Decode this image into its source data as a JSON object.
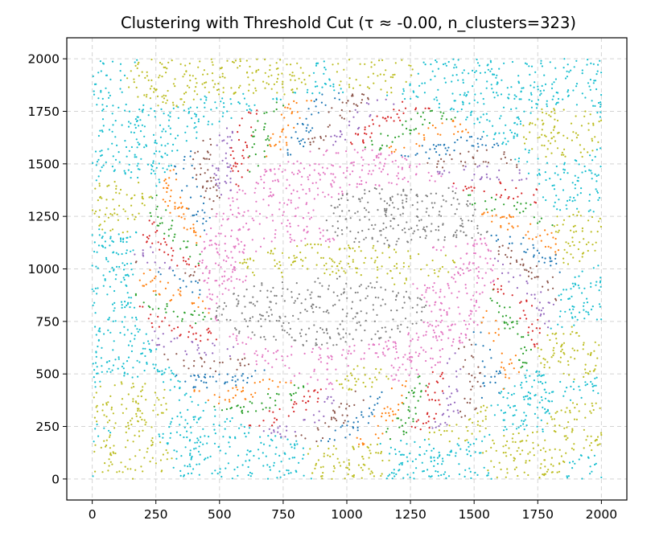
{
  "chart_data": {
    "type": "scatter",
    "title": "Clustering with Threshold Cut (τ ≈ -0.00, n_clusters=323)",
    "xlabel": "",
    "ylabel": "",
    "xlim": [
      -100,
      2100
    ],
    "ylim": [
      -100,
      2100
    ],
    "xticks": [
      0,
      250,
      500,
      750,
      1000,
      1250,
      1500,
      1750,
      2000
    ],
    "yticks": [
      0,
      250,
      500,
      750,
      1000,
      1250,
      1500,
      1750,
      2000
    ],
    "xtick_labels": [
      "0",
      "250",
      "500",
      "750",
      "1000",
      "1250",
      "1500",
      "1750",
      "2000"
    ],
    "ytick_labels": [
      "0",
      "250",
      "500",
      "750",
      "1000",
      "1250",
      "1500",
      "1750",
      "2000"
    ],
    "grid": true,
    "legend": "none",
    "n_clusters": 323,
    "palette": [
      "#1f77b4",
      "#ff7f0e",
      "#2ca02c",
      "#d62728",
      "#9467bd",
      "#8c564b",
      "#e377c2",
      "#7f7f7f",
      "#bcbd22",
      "#17becf"
    ],
    "point_extent": {
      "x": [
        0,
        2000
      ],
      "y": [
        0,
        2000
      ]
    },
    "regions": [
      {
        "name": "outer-corners",
        "color": "#17becf",
        "center": [
          1000,
          1000
        ],
        "shape": "outside ellipse",
        "radius": [
          1000,
          1000
        ]
      },
      {
        "name": "outer-yellow-patches",
        "color": "#bcbd22",
        "samples": [
          [
            150,
            100
          ],
          [
            300,
            1900
          ],
          [
            1100,
            1950
          ],
          [
            1850,
            1650
          ],
          [
            1900,
            600
          ],
          [
            1700,
            100
          ]
        ]
      },
      {
        "name": "inner-gray-top",
        "color": "#7f7f7f",
        "center": [
          1250,
          1250
        ],
        "radius": [
          380,
          150
        ]
      },
      {
        "name": "inner-gray-bottom",
        "color": "#7f7f7f",
        "center": [
          900,
          800
        ],
        "radius": [
          420,
          170
        ]
      },
      {
        "name": "inner-yellow-band",
        "color": "#bcbd22",
        "center": [
          1000,
          1000
        ],
        "radius": [
          420,
          110
        ]
      },
      {
        "name": "pink-ring-left",
        "color": "#e377c2",
        "center": [
          500,
          1100
        ],
        "radius": [
          250,
          350
        ]
      },
      {
        "name": "pink-ring-right",
        "color": "#e377c2",
        "center": [
          1500,
          850
        ],
        "radius": [
          250,
          350
        ]
      },
      {
        "name": "colored-ring",
        "colors": [
          "#1f77b4",
          "#ff7f0e",
          "#2ca02c",
          "#d62728",
          "#9467bd",
          "#8c564b"
        ],
        "center": [
          1000,
          1000
        ],
        "radius_range": [
          600,
          830
        ]
      }
    ]
  }
}
